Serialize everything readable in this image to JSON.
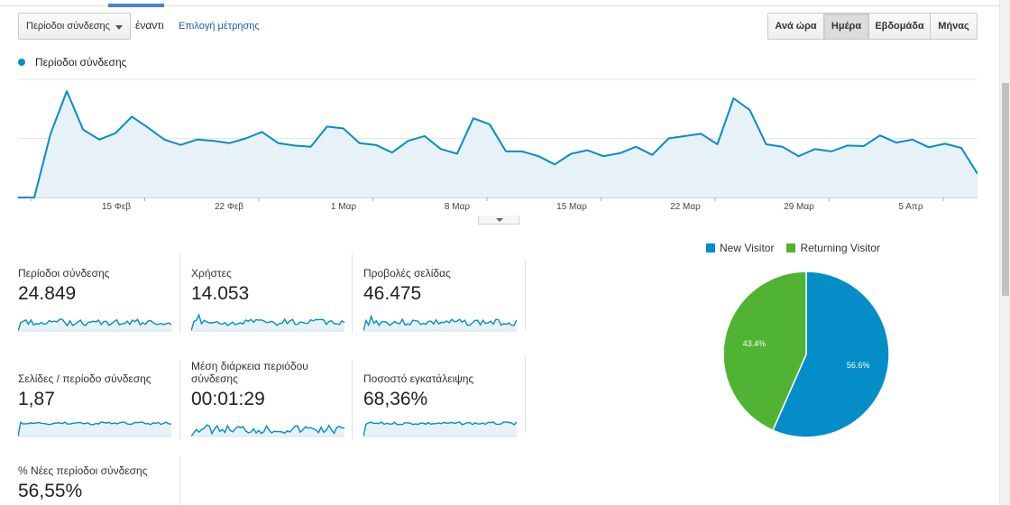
{
  "toolbar": {
    "metric_select_label": "Περίοδοι σύνδεσης",
    "vs_label": "έναντι",
    "pick_metric_link": "Επιλογή μέτρησης"
  },
  "granularity": {
    "buttons": [
      "Ανά ώρα",
      "Ημέρα",
      "Εβδομάδα",
      "Μήνας"
    ],
    "active": "Ημέρα"
  },
  "main_chart": {
    "legend_label": "Περίοδοι σύνδεσης",
    "x_tick_labels": [
      "15 Φεβ",
      "22 Φεβ",
      "1 Μαρ",
      "8 Μαρ",
      "15 Μαρ",
      "22 Μαρ",
      "29 Μαρ",
      "5 Απρ"
    ]
  },
  "chart_data": {
    "type": "area",
    "series": [
      {
        "values": [
          0,
          0,
          540,
          900,
          575,
          490,
          545,
          685,
          590,
          490,
          445,
          490,
          480,
          460,
          500,
          555,
          460,
          440,
          430,
          600,
          585,
          460,
          445,
          380,
          480,
          520,
          410,
          370,
          670,
          620,
          390,
          390,
          350,
          280,
          370,
          400,
          350,
          375,
          430,
          360,
          500,
          520,
          540,
          450,
          840,
          740,
          450,
          430,
          350,
          410,
          390,
          440,
          435,
          525,
          465,
          490,
          425,
          455,
          420,
          200
        ]
      }
    ],
    "x_ticks": [
      "15 Φεβ",
      "22 Φεβ",
      "1 Μαρ",
      "8 Μαρ",
      "15 Μαρ",
      "22 Μαρ",
      "29 Μαρ",
      "5 Απρ"
    ],
    "grid": true,
    "colors": {
      "line": "#058dc7",
      "fill": "#e6f1f8"
    }
  },
  "metrics": [
    {
      "name": "Περίοδοι σύνδεσης",
      "value": "24.849"
    },
    {
      "name": "Χρήστες",
      "value": "14.053"
    },
    {
      "name": "Προβολές σελίδας",
      "value": "46.475"
    },
    {
      "name": "Σελίδες / περίοδο σύνδεσης",
      "value": "1,87"
    },
    {
      "name": "Μέση διάρκεια περιόδου σύνδεσης",
      "value": "00:01:29"
    },
    {
      "name": "Ποσοστό εγκατάλειψης",
      "value": "68,36%"
    },
    {
      "name": "% Νέες περίοδοι σύνδεσης",
      "value": "56,55%"
    }
  ],
  "pie": {
    "legend": [
      {
        "label": "New Visitor",
        "color": "#058dc7"
      },
      {
        "label": "Returning Visitor",
        "color": "#50b432"
      }
    ],
    "chart_data": {
      "type": "pie",
      "labels": [
        "New Visitor",
        "Returning Visitor"
      ],
      "values": [
        56.6,
        43.4
      ],
      "slice_labels": [
        "56.6%",
        "43.4%"
      ],
      "colors": [
        "#058dc7",
        "#50b432"
      ]
    }
  }
}
